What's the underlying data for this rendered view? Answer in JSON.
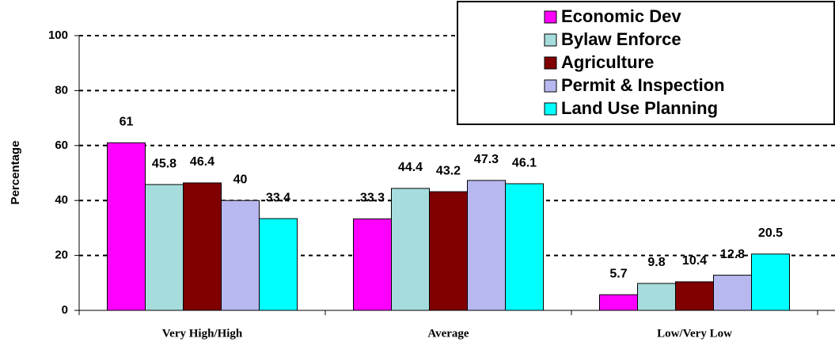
{
  "chart_data": {
    "type": "bar",
    "y_label": "Percentage",
    "categories": [
      "Very High/High",
      "Average",
      "Low/Very Low"
    ],
    "series": [
      {
        "name": "Economic Dev",
        "color": "#ff00ff",
        "values": [
          61,
          33.3,
          5.7
        ]
      },
      {
        "name": "Bylaw Enforce",
        "color": "#a6dcdc",
        "values": [
          45.8,
          44.4,
          9.8
        ]
      },
      {
        "name": "Agriculture",
        "color": "#800000",
        "values": [
          46.4,
          43.2,
          10.4
        ]
      },
      {
        "name": "Permit & Inspection",
        "color": "#b8b8f0",
        "values": [
          40,
          47.3,
          12.8
        ]
      },
      {
        "name": "Land Use Planning",
        "color": "#00ffff",
        "values": [
          33.4,
          46.1,
          20.5
        ]
      }
    ],
    "ylim": [
      0,
      100
    ],
    "yticks": [
      0,
      20,
      40,
      60,
      80,
      100
    ],
    "grid": true,
    "legend": "top-right"
  }
}
